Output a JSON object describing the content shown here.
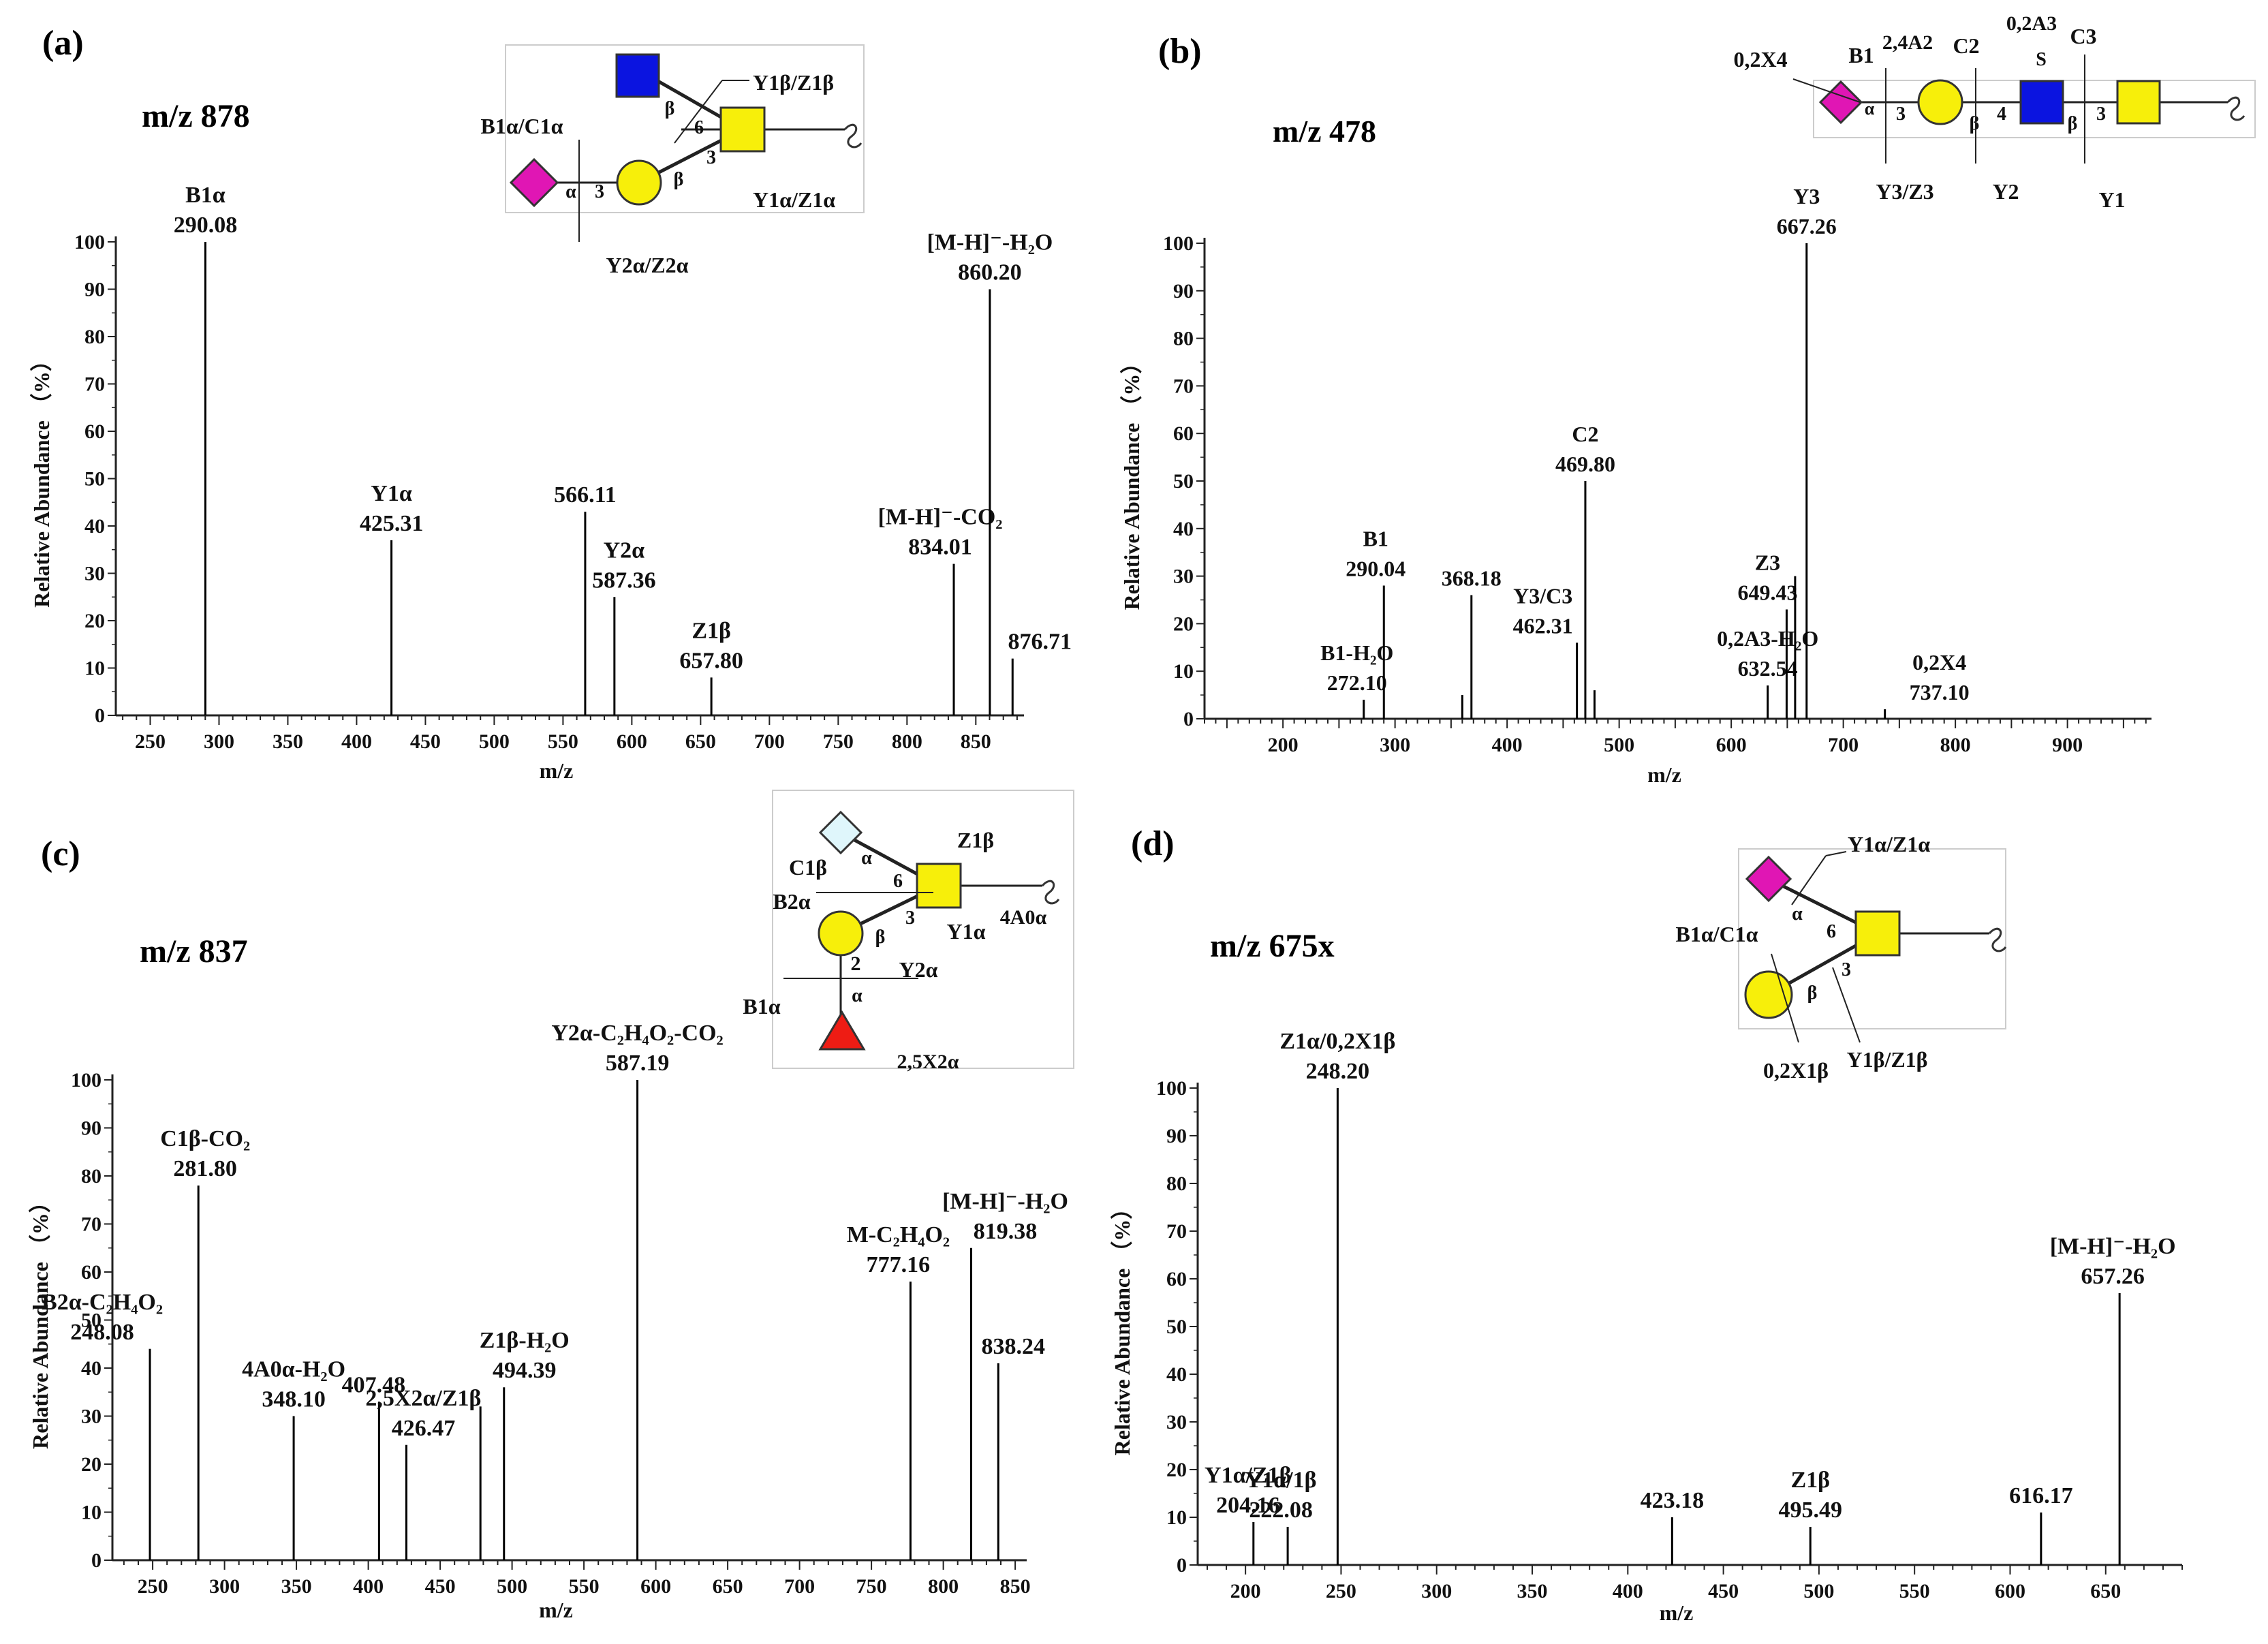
{
  "chart_data": [
    {
      "type": "bar",
      "panel": "(a)",
      "precursor": "m/z 878",
      "xlabel": "m/z",
      "ylabel": "Relative Abundance （%）",
      "xlim": [
        225,
        885
      ],
      "ylim": [
        0,
        100
      ],
      "xticks": [
        "250",
        "300",
        "350",
        "400",
        "450",
        "500",
        "550",
        "600",
        "650",
        "700",
        "750",
        "800",
        "850"
      ],
      "yticks": [
        "0",
        "10",
        "20",
        "30",
        "40",
        "50",
        "60",
        "70",
        "80",
        "90",
        "100"
      ],
      "peaks": [
        {
          "mz": 290.08,
          "intensity": 100,
          "label": "290.08",
          "ion": "B1α"
        },
        {
          "mz": 425.31,
          "intensity": 37,
          "label": "425.31",
          "ion": "Y1α"
        },
        {
          "mz": 566.11,
          "intensity": 43,
          "label": "566.11",
          "ion": ""
        },
        {
          "mz": 587.36,
          "intensity": 25,
          "label": "587.36",
          "ion": "Y2α"
        },
        {
          "mz": 657.8,
          "intensity": 8,
          "label": "657.80",
          "ion": "Z1β"
        },
        {
          "mz": 834.01,
          "intensity": 32,
          "label": "834.01",
          "ion": "[M-H]⁻-CO₂"
        },
        {
          "mz": 860.2,
          "intensity": 90,
          "label": "860.20",
          "ion": "[M-H]⁻-H₂O"
        },
        {
          "mz": 876.71,
          "intensity": 12,
          "label": "876.71",
          "ion": ""
        }
      ],
      "structure_labels": [
        "Y1β/Z1β",
        "B1α/C1α",
        "Y1α/Z1α",
        "Y2α/Z2α",
        "β",
        "α",
        "3",
        "6"
      ]
    },
    {
      "type": "bar",
      "panel": "(b)",
      "precursor": "m/z 478",
      "xlabel": "m/z",
      "ylabel": "Relative Abundance （%）",
      "xlim": [
        130,
        975
      ],
      "ylim": [
        0,
        100
      ],
      "xticks": [
        "200",
        "300",
        "400",
        "500",
        "600",
        "700",
        "800",
        "900"
      ],
      "yticks": [
        "0",
        "10",
        "20",
        "30",
        "40",
        "50",
        "60",
        "70",
        "80",
        "90",
        "100"
      ],
      "peaks": [
        {
          "mz": 272.1,
          "intensity": 4,
          "label": "272.10",
          "ion": "B1-H₂O"
        },
        {
          "mz": 290.04,
          "intensity": 28,
          "label": "290.04",
          "ion": "B1"
        },
        {
          "mz": 360.0,
          "intensity": 5,
          "label": "",
          "ion": ""
        },
        {
          "mz": 368.18,
          "intensity": 26,
          "label": "368.18",
          "ion": ""
        },
        {
          "mz": 462.31,
          "intensity": 16,
          "label": "462.31",
          "ion": "Y3/C3"
        },
        {
          "mz": 469.8,
          "intensity": 50,
          "label": "469.80",
          "ion": "C2"
        },
        {
          "mz": 478.0,
          "intensity": 6,
          "label": "",
          "ion": ""
        },
        {
          "mz": 632.54,
          "intensity": 7,
          "label": "632.54",
          "ion": "0,2A3-H₂O"
        },
        {
          "mz": 649.43,
          "intensity": 23,
          "label": "649.43",
          "ion": "Z3"
        },
        {
          "mz": 657.0,
          "intensity": 30,
          "label": "",
          "ion": ""
        },
        {
          "mz": 667.26,
          "intensity": 100,
          "label": "667.26",
          "ion": "Y3"
        },
        {
          "mz": 737.1,
          "intensity": 2,
          "label": "737.10",
          "ion": "0,2X4"
        }
      ],
      "structure_labels": [
        "B1",
        "2,4A2",
        "C2",
        "0,2A3",
        "C3",
        "0,2X4",
        "Y3/Z3",
        "Y2",
        "Y1",
        "S",
        "α",
        "β",
        "3",
        "4"
      ]
    },
    {
      "type": "bar",
      "panel": "(c)",
      "precursor": "m/z 837",
      "xlabel": "m/z",
      "ylabel": "Relative Abundance （%）",
      "xlim": [
        222,
        858
      ],
      "ylim": [
        0,
        100
      ],
      "xticks": [
        "250",
        "300",
        "350",
        "400",
        "450",
        "500",
        "550",
        "600",
        "650",
        "700",
        "750",
        "800",
        "850"
      ],
      "yticks": [
        "0",
        "10",
        "20",
        "30",
        "40",
        "50",
        "60",
        "70",
        "80",
        "90",
        "100"
      ],
      "peaks": [
        {
          "mz": 248.08,
          "intensity": 44,
          "label": "248.08",
          "ion": "B2α-C₂H₄O₂"
        },
        {
          "mz": 281.8,
          "intensity": 78,
          "label": "281.80",
          "ion": "C1β-CO₂"
        },
        {
          "mz": 348.1,
          "intensity": 30,
          "label": "348.10",
          "ion": "4A0α-H₂O"
        },
        {
          "mz": 407.48,
          "intensity": 33,
          "label": "407.48",
          "ion": ""
        },
        {
          "mz": 426.47,
          "intensity": 24,
          "label": "426.47",
          "ion": "2,5X2α/Z1β"
        },
        {
          "mz": 478.0,
          "intensity": 32,
          "label": "",
          "ion": ""
        },
        {
          "mz": 494.39,
          "intensity": 36,
          "label": "494.39",
          "ion": "Z1β-H₂O"
        },
        {
          "mz": 587.19,
          "intensity": 100,
          "label": "587.19",
          "ion": "Y2α-C₂H₄O₂-CO₂"
        },
        {
          "mz": 777.16,
          "intensity": 58,
          "label": "777.16",
          "ion": "M-C₂H₄O₂"
        },
        {
          "mz": 819.38,
          "intensity": 65,
          "label": "819.38",
          "ion": "[M-H]⁻-H₂O"
        },
        {
          "mz": 838.24,
          "intensity": 41,
          "label": "838.24",
          "ion": ""
        }
      ],
      "structure_labels": [
        "C1β",
        "Z1β",
        "B2α",
        "Y1α",
        "4A0α",
        "Y2α",
        "B1α",
        "2,5X2α",
        "α",
        "β",
        "6",
        "3",
        "2"
      ]
    },
    {
      "type": "bar",
      "panel": "(d)",
      "precursor": "m/z 675x",
      "xlabel": "m/z",
      "ylabel": "Relative Abundance （%）",
      "xlim": [
        175,
        690
      ],
      "ylim": [
        0,
        100
      ],
      "xticks": [
        "200",
        "250",
        "300",
        "350",
        "400",
        "450",
        "500",
        "550",
        "600",
        "650"
      ],
      "yticks": [
        "0",
        "10",
        "20",
        "30",
        "40",
        "50",
        "60",
        "70",
        "80",
        "90",
        "100"
      ],
      "peaks": [
        {
          "mz": 204.16,
          "intensity": 9,
          "label": "204.16",
          "ion": "Y1α/Z1β"
        },
        {
          "mz": 222.08,
          "intensity": 8,
          "label": "222.08",
          "ion": "Y1α/1β"
        },
        {
          "mz": 248.2,
          "intensity": 100,
          "label": "248.20",
          "ion": "Z1α/0,2X1β"
        },
        {
          "mz": 423.18,
          "intensity": 10,
          "label": "423.18",
          "ion": ""
        },
        {
          "mz": 495.49,
          "intensity": 8,
          "label": "495.49",
          "ion": "Z1β"
        },
        {
          "mz": 616.17,
          "intensity": 11,
          "label": "616.17",
          "ion": ""
        },
        {
          "mz": 657.26,
          "intensity": 57,
          "label": "657.26",
          "ion": "[M-H]⁻-H₂O"
        }
      ],
      "structure_labels": [
        "Y1α/Z1α",
        "B1α/C1α",
        "0,2X1β",
        "Y1β/Z1β",
        "α",
        "β",
        "6",
        "3"
      ]
    }
  ]
}
